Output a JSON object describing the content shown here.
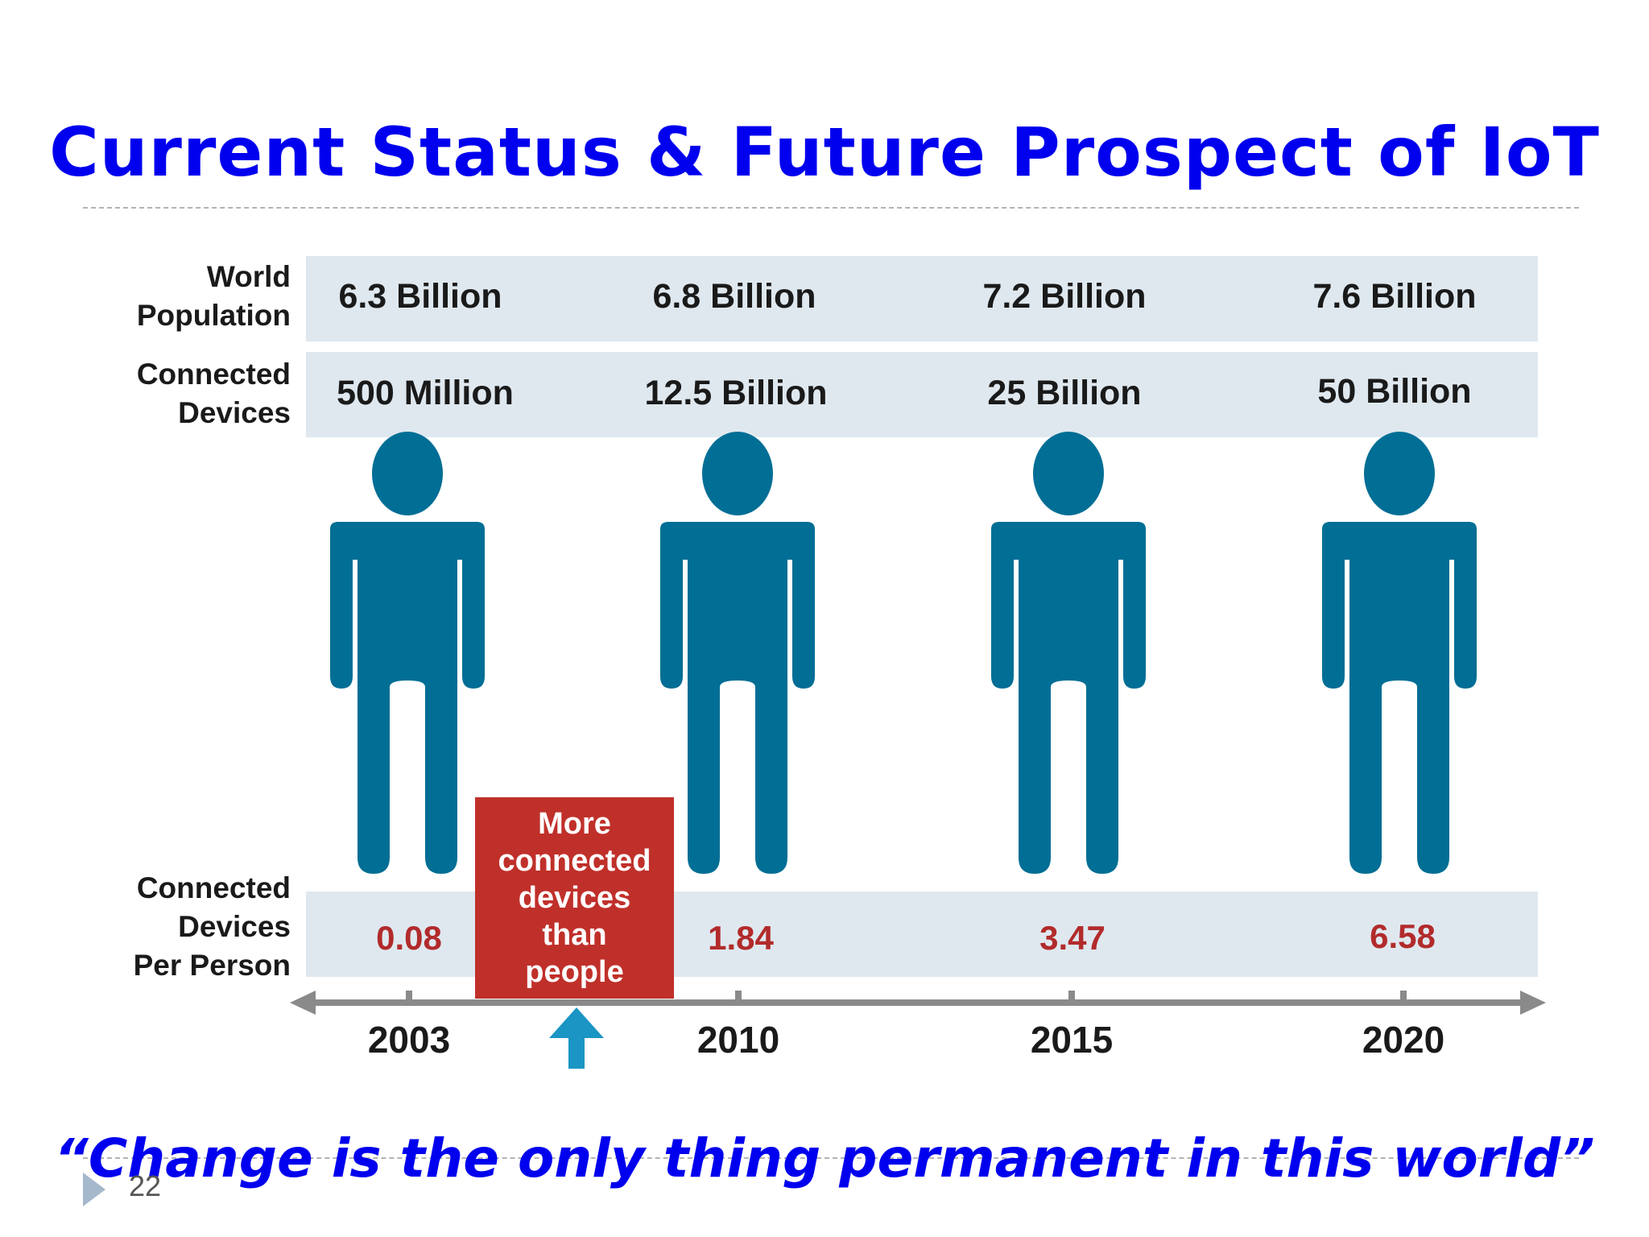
{
  "title": "Current Status & Future Prospect of IoT",
  "colors": {
    "title": "#0000ee",
    "figure": "#006e95",
    "ratio": "#b22b2b",
    "callout": "#c0302a",
    "arrow": "#1b95c4"
  },
  "row_labels": {
    "population": "World\nPopulation",
    "devices": "Connected\nDevices",
    "per_person": "Connected\nDevices\nPer Person"
  },
  "columns": [
    {
      "year": "2003",
      "population": "6.3 Billion",
      "devices": "500 Million",
      "per_person": "0.08"
    },
    {
      "year": "2010",
      "population": "6.8 Billion",
      "devices": "12.5 Billion",
      "per_person": "1.84"
    },
    {
      "year": "2015",
      "population": "7.2 Billion",
      "devices": "25 Billion",
      "per_person": "3.47"
    },
    {
      "year": "2020",
      "population": "7.6 Billion",
      "devices": "50 Billion",
      "per_person": "6.58"
    }
  ],
  "callout": "More\nconnected\ndevices\nthan\npeople",
  "icons": {
    "person": "person-icon",
    "timeline_arrow": "double-arrow-icon",
    "marker": "up-arrow-icon",
    "bullet": "triangle-bullet-icon"
  },
  "quote": "“Change is the only thing permanent in this world”",
  "slide_number": "22"
}
